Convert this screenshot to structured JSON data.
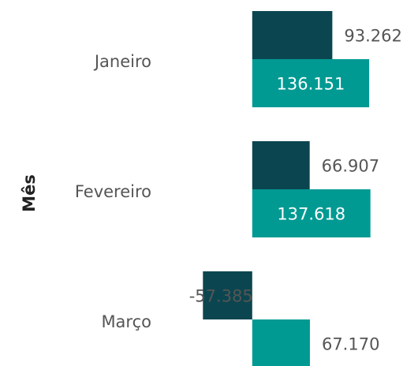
{
  "chart_data": {
    "type": "bar",
    "orientation": "horizontal",
    "y_label": "Mês",
    "categories": [
      "Janeiro",
      "Fevereiro",
      "Março"
    ],
    "series": [
      {
        "color": "#0b4650",
        "values": [
          93262,
          66907,
          -57385
        ],
        "value_labels": [
          "93.262",
          "66.907",
          "-57.385"
        ]
      },
      {
        "color": "#009a93",
        "values": [
          136151,
          137618,
          67170
        ],
        "value_labels": [
          "136.151",
          "137.618",
          "67.170"
        ]
      }
    ],
    "xlim": [
      -110000,
      193000
    ]
  }
}
